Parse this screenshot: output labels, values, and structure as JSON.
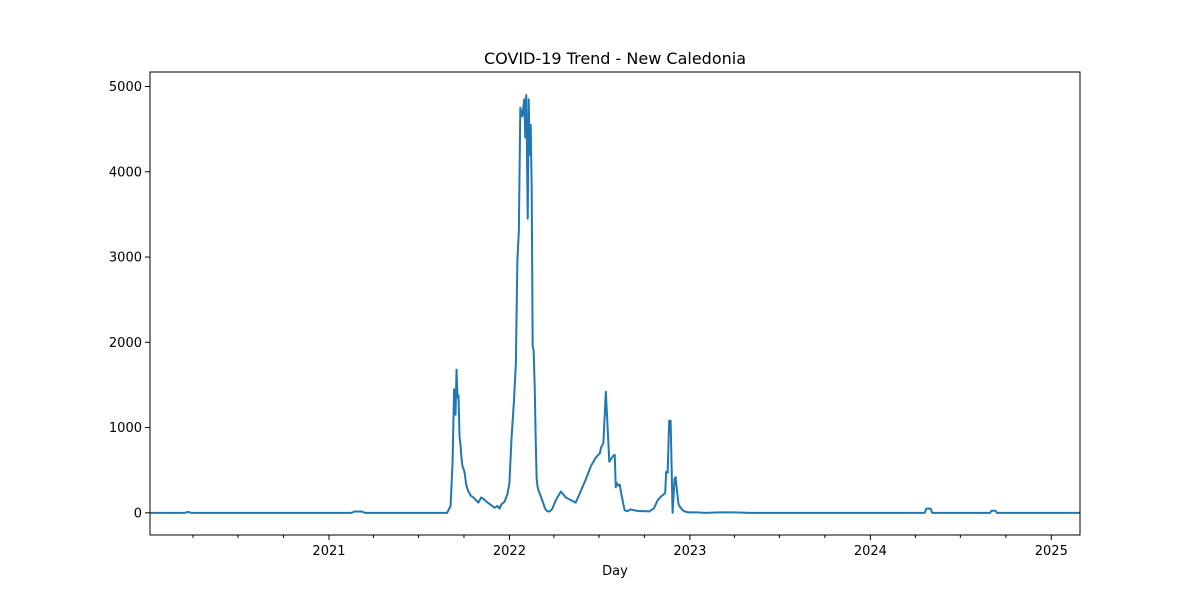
{
  "chart_data": {
    "type": "line",
    "title": "COVID-19 Trend - New Caledonia",
    "xlabel": "Day",
    "ylabel": "",
    "xlim": [
      "2020-01-05",
      "2025-02-28"
    ],
    "ylim": [
      -260,
      5170
    ],
    "x_major_ticks": [
      {
        "date": "2021-01-01",
        "label": "2021"
      },
      {
        "date": "2022-01-01",
        "label": "2022"
      },
      {
        "date": "2023-01-01",
        "label": "2023"
      },
      {
        "date": "2024-01-01",
        "label": "2024"
      },
      {
        "date": "2025-01-01",
        "label": "2025"
      }
    ],
    "x_minor_ticks": [
      "2020-04-01",
      "2020-07-01",
      "2020-10-01",
      "2021-04-01",
      "2021-07-01",
      "2021-10-01",
      "2022-04-01",
      "2022-07-01",
      "2022-10-01",
      "2023-04-01",
      "2023-07-01",
      "2023-10-01",
      "2024-04-01",
      "2024-07-01",
      "2024-10-01"
    ],
    "y_ticks": [
      0,
      1000,
      2000,
      3000,
      4000,
      5000
    ],
    "grid": false,
    "line_color": "#1f77b4",
    "series": [
      {
        "x": [
          "2020-01-05",
          "2020-03-15",
          "2020-03-22",
          "2020-03-29",
          "2021-02-15",
          "2021-02-22",
          "2021-03-08",
          "2021-03-15",
          "2021-08-28",
          "2021-09-04",
          "2021-09-08",
          "2021-09-11",
          "2021-09-14",
          "2021-09-16",
          "2021-09-18",
          "2021-09-20",
          "2021-09-22",
          "2021-09-24",
          "2021-09-26",
          "2021-09-28",
          "2021-10-01",
          "2021-10-03",
          "2021-10-05",
          "2021-10-07",
          "2021-10-10",
          "2021-10-15",
          "2021-10-20",
          "2021-10-25",
          "2021-10-30",
          "2021-11-05",
          "2021-11-10",
          "2021-11-18",
          "2021-11-25",
          "2021-12-02",
          "2021-12-08",
          "2021-12-12",
          "2021-12-16",
          "2021-12-22",
          "2021-12-28",
          "2022-01-01",
          "2022-01-05",
          "2022-01-10",
          "2022-01-14",
          "2022-01-17",
          "2022-01-20",
          "2022-01-23",
          "2022-01-27",
          "2022-01-31",
          "2022-02-02",
          "2022-02-04",
          "2022-02-07",
          "2022-02-09",
          "2022-02-11",
          "2022-02-13",
          "2022-02-15",
          "2022-02-17",
          "2022-02-19",
          "2022-02-21",
          "2022-02-23",
          "2022-02-25",
          "2022-02-27",
          "2022-03-01",
          "2022-03-05",
          "2022-03-10",
          "2022-03-14",
          "2022-03-18",
          "2022-03-23",
          "2022-03-28",
          "2022-04-05",
          "2022-04-15",
          "2022-04-25",
          "2022-05-05",
          "2022-05-15",
          "2022-05-25",
          "2022-06-05",
          "2022-06-15",
          "2022-06-25",
          "2022-06-30",
          "2022-07-03",
          "2022-07-05",
          "2022-07-10",
          "2022-07-15",
          "2022-07-22",
          "2022-07-30",
          "2022-08-02",
          "2022-08-04",
          "2022-08-06",
          "2022-08-09",
          "2022-08-12",
          "2022-08-16",
          "2022-08-22",
          "2022-08-28",
          "2022-09-03",
          "2022-09-10",
          "2022-09-20",
          "2022-10-01",
          "2022-10-10",
          "2022-10-20",
          "2022-10-28",
          "2022-11-05",
          "2022-11-12",
          "2022-11-14",
          "2022-11-17",
          "2022-11-20",
          "2022-11-23",
          "2022-11-27",
          "2022-12-01",
          "2022-12-03",
          "2022-12-06",
          "2022-12-09",
          "2022-12-12",
          "2022-12-16",
          "2022-12-20",
          "2022-12-25",
          "2023-01-01",
          "2023-01-15",
          "2023-02-01",
          "2023-03-01",
          "2023-04-01",
          "2023-05-01",
          "2023-06-01",
          "2023-07-01",
          "2024-04-20",
          "2024-04-23",
          "2024-05-02",
          "2024-05-05",
          "2024-08-30",
          "2024-09-02",
          "2024-09-10",
          "2024-09-13",
          "2025-02-28"
        ],
        "y": [
          0,
          0,
          10,
          0,
          0,
          15,
          15,
          0,
          0,
          80,
          600,
          1450,
          1150,
          1680,
          1350,
          1380,
          900,
          800,
          650,
          550,
          500,
          450,
          350,
          300,
          250,
          200,
          180,
          150,
          120,
          180,
          160,
          120,
          90,
          60,
          80,
          50,
          100,
          130,
          220,
          350,
          850,
          1300,
          1750,
          2950,
          3300,
          4750,
          4650,
          4850,
          4400,
          4900,
          3450,
          4850,
          4200,
          4550,
          3800,
          1950,
          1900,
          1500,
          900,
          400,
          300,
          260,
          200,
          120,
          50,
          20,
          15,
          40,
          150,
          250,
          180,
          150,
          120,
          250,
          400,
          550,
          650,
          680,
          700,
          760,
          820,
          1420,
          600,
          670,
          680,
          300,
          350,
          320,
          330,
          200,
          30,
          20,
          40,
          30,
          20,
          20,
          15,
          50,
          150,
          200,
          230,
          480,
          470,
          1080,
          1080,
          0,
          400,
          420,
          250,
          100,
          70,
          40,
          20,
          10,
          5,
          5,
          0,
          5,
          5,
          0,
          0,
          0,
          0,
          50,
          50,
          0,
          0,
          25,
          25,
          0,
          0
        ]
      }
    ]
  }
}
